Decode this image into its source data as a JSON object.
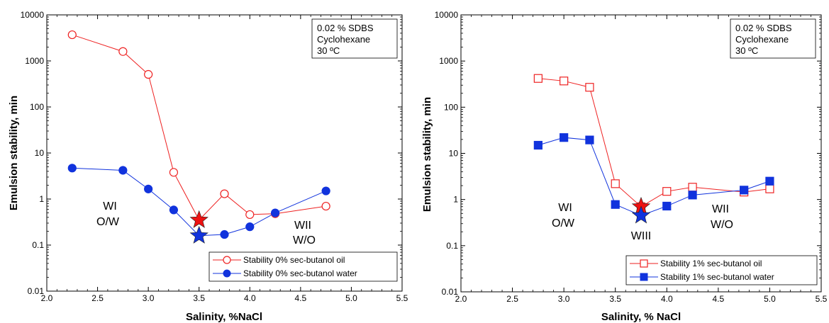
{
  "charts": [
    {
      "ylabel": "Emulsion stability, min",
      "xlabel": "Salinity, %NaCl",
      "info": [
        "0.02 % SDBS",
        "Cyclohexane",
        "30 ºC"
      ],
      "regions": {
        "left": [
          "WI",
          "O/W"
        ],
        "middle": [],
        "right": [
          "WII",
          "W/O"
        ]
      },
      "legend": [
        "Stability 0% sec-butanol oil",
        "Stability 0% sec-butanol water"
      ]
    },
    {
      "ylabel": "Emulsion stability, min",
      "xlabel": "Salinity, % NaCl",
      "info": [
        "0.02 % SDBS",
        "Cyclohexane",
        "30 ºC"
      ],
      "regions": {
        "left": [
          "WI",
          "O/W"
        ],
        "middle": [
          "WIII"
        ],
        "right": [
          "WII",
          "W/O"
        ]
      },
      "legend": [
        "Stability 1% sec-butanol oil",
        "Stability 1% sec-butanol water"
      ]
    }
  ],
  "chart_data": [
    {
      "type": "line",
      "yscale": "log",
      "xlim": [
        2.0,
        5.5
      ],
      "ylim": [
        0.01,
        10000
      ],
      "xticks": [
        "2.0",
        "2.5",
        "3.0",
        "3.5",
        "4.0",
        "4.5",
        "5.0",
        "5.5"
      ],
      "yticks": [
        "0.01",
        "0.1",
        "1",
        "10",
        "100",
        "1000",
        "10000"
      ],
      "grid": false,
      "legend_position": "bottom-right",
      "series": [
        {
          "name": "Stability 0% sec-butanol oil",
          "color": "#ee2222",
          "marker": "circle-open",
          "x": [
            2.25,
            2.75,
            3.0,
            3.25,
            3.5,
            3.75,
            4.0,
            4.25,
            4.75
          ],
          "y": [
            3700,
            1600,
            510,
            3.8,
            0.35,
            1.3,
            0.46,
            0.48,
            0.7
          ]
        },
        {
          "name": "Stability 0% sec-butanol water",
          "color": "#1133dd",
          "marker": "circle-filled",
          "x": [
            2.25,
            2.75,
            3.0,
            3.25,
            3.5,
            3.75,
            4.0,
            4.25,
            4.75
          ],
          "y": [
            4.7,
            4.2,
            1.65,
            0.58,
            0.16,
            0.17,
            0.25,
            0.5,
            1.5
          ]
        }
      ],
      "stars": [
        {
          "x": 3.5,
          "y": 0.35,
          "color": "#ee1111"
        },
        {
          "x": 3.5,
          "y": 0.16,
          "color": "#1133dd"
        }
      ]
    },
    {
      "type": "line",
      "yscale": "log",
      "xlim": [
        2.0,
        5.5
      ],
      "ylim": [
        0.01,
        10000
      ],
      "xticks": [
        "2.0",
        "2.5",
        "3.0",
        "3.5",
        "4.0",
        "4.5",
        "5.0",
        "5.5"
      ],
      "yticks": [
        "0.01",
        "0.1",
        "1",
        "10",
        "100",
        "1000",
        "10000"
      ],
      "grid": false,
      "legend_position": "bottom-right",
      "series": [
        {
          "name": "Stability 1% sec-butanol oil",
          "color": "#ee2222",
          "marker": "square-open",
          "x": [
            2.75,
            3.0,
            3.25,
            3.5,
            3.75,
            4.0,
            4.25,
            4.75,
            5.0
          ],
          "y": [
            420,
            370,
            270,
            2.2,
            0.7,
            1.5,
            1.85,
            1.45,
            1.7
          ]
        },
        {
          "name": "Stability 1% sec-butanol water",
          "color": "#1133dd",
          "marker": "square-filled",
          "x": [
            2.75,
            3.0,
            3.25,
            3.5,
            3.75,
            4.0,
            4.25,
            4.75,
            5.0
          ],
          "y": [
            15,
            22,
            19.5,
            0.78,
            0.45,
            0.72,
            1.25,
            1.6,
            2.5
          ]
        }
      ],
      "stars": [
        {
          "x": 3.75,
          "y": 0.7,
          "color": "#ee1111"
        },
        {
          "x": 3.75,
          "y": 0.45,
          "color": "#1133dd"
        }
      ]
    }
  ]
}
